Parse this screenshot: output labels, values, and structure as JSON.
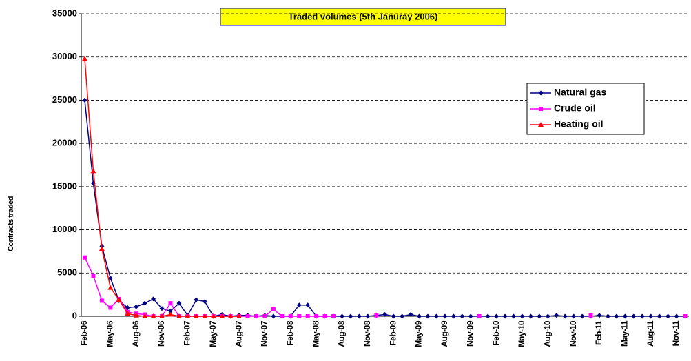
{
  "chart_data": {
    "type": "line",
    "title": "Traded volumes (5th Januray 2006)",
    "y_label": "Contracts traded",
    "categories": [
      "Feb-06",
      null,
      null,
      "May-06",
      null,
      null,
      "Aug-06",
      null,
      null,
      "Nov-06",
      null,
      null,
      "Feb-07",
      null,
      null,
      "May-07",
      null,
      null,
      "Aug-07",
      null,
      null,
      "Nov-07",
      null,
      null,
      "Feb-08",
      null,
      null,
      "May-08",
      null,
      null,
      "Aug-08",
      null,
      null,
      "Nov-08",
      null,
      null,
      "Feb-09",
      null,
      null,
      "May-09",
      null,
      null,
      "Aug-09",
      null,
      null,
      "Nov-09",
      null,
      null,
      "Feb-10",
      null,
      null,
      "May-10",
      null,
      null,
      "Aug-10",
      null,
      null,
      "Nov-10",
      null,
      null,
      "Feb-11",
      null,
      null,
      "May-11",
      null,
      null,
      "Aug-11",
      null,
      null,
      "Nov-11",
      null
    ],
    "series": [
      {
        "name": "Natural gas",
        "color": "#000080",
        "marker": "diamond",
        "values": [
          25000,
          15400,
          8100,
          4400,
          1800,
          1000,
          1100,
          1500,
          2000,
          900,
          600,
          1500,
          100,
          1900,
          1700,
          0,
          200,
          0,
          100,
          100,
          0,
          100,
          0,
          0,
          0,
          1300,
          1300,
          0,
          0,
          0,
          0,
          0,
          0,
          0,
          100,
          200,
          0,
          0,
          200,
          0,
          0,
          0,
          0,
          0,
          0,
          0,
          0,
          0,
          0,
          0,
          0,
          0,
          0,
          0,
          0,
          100,
          0,
          0,
          0,
          0,
          100,
          0,
          0,
          0,
          0,
          0,
          0,
          0,
          0,
          0,
          0
        ]
      },
      {
        "name": "Crude oil",
        "color": "#ff00ff",
        "marker": "square",
        "values": [
          6800,
          4700,
          1800,
          1000,
          2000,
          500,
          300,
          200,
          0,
          0,
          1500,
          0,
          0,
          0,
          0,
          0,
          0,
          0,
          0,
          0,
          0,
          0,
          800,
          0,
          0,
          0,
          0,
          0,
          0,
          0,
          null,
          null,
          null,
          null,
          100,
          null,
          null,
          null,
          null,
          null,
          null,
          null,
          null,
          null,
          null,
          null,
          0,
          null,
          null,
          null,
          null,
          null,
          null,
          null,
          null,
          null,
          null,
          null,
          null,
          100,
          null,
          null,
          null,
          null,
          null,
          null,
          null,
          null,
          null,
          null,
          0
        ]
      },
      {
        "name": "Heating oil",
        "color": "#ff0000",
        "marker": "triangle",
        "values": [
          29800,
          16800,
          7800,
          3300,
          1900,
          300,
          100,
          0,
          0,
          0,
          200,
          0,
          0,
          0,
          0,
          0,
          0,
          0,
          0,
          null,
          null,
          null,
          null,
          null,
          null,
          null,
          null,
          null,
          null,
          null,
          null,
          null,
          null,
          null,
          null,
          null,
          null,
          null,
          null,
          null,
          null,
          null,
          null,
          null,
          null,
          null,
          null,
          null,
          null,
          null,
          null,
          null,
          null,
          null,
          null,
          null,
          null,
          null,
          null,
          null,
          null,
          null,
          null,
          null,
          null,
          null,
          null,
          null,
          null,
          null,
          null
        ]
      }
    ],
    "ylim": [
      0,
      35000
    ],
    "yticks": [
      0,
      5000,
      10000,
      15000,
      20000,
      25000,
      30000,
      35000
    ],
    "grid": true,
    "legend": "upper right"
  }
}
